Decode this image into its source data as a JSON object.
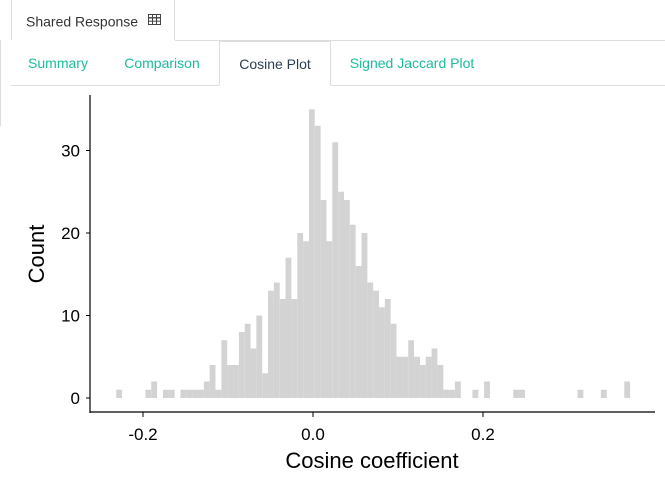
{
  "outer_tab": {
    "label": "Shared Response",
    "icon": "table-icon"
  },
  "tabs": [
    {
      "label": "Summary",
      "active": false
    },
    {
      "label": "Comparison",
      "active": false
    },
    {
      "label": "Cosine Plot",
      "active": true
    },
    {
      "label": "Signed Jaccard Plot",
      "active": false
    }
  ],
  "colors": {
    "accent": "#1abc9c",
    "active_text": "#2c3e50",
    "bar_fill": "#d3d3d3",
    "border": "#dddddd"
  },
  "chart_data": {
    "type": "bar",
    "title": "",
    "xlabel": "Cosine coefficient",
    "ylabel": "Count",
    "x_ticks": [
      -0.2,
      0.0,
      0.2
    ],
    "x_tick_labels": [
      "-0.2",
      "0.0",
      "0.2"
    ],
    "y_ticks": [
      0,
      10,
      20,
      30
    ],
    "y_tick_labels": [
      "0",
      "10",
      "20",
      "30"
    ],
    "xlim": [
      -0.265,
      0.4
    ],
    "ylim": [
      0,
      36
    ],
    "grid": false,
    "bin_width": 0.00687,
    "bins_start": [
      -0.2315,
      -0.2246,
      -0.2177,
      -0.2109,
      -0.204,
      -0.1971,
      -0.1903,
      -0.1834,
      -0.1765,
      -0.1697,
      -0.1628,
      -0.1559,
      -0.149,
      -0.1422,
      -0.1353,
      -0.1284,
      -0.1216,
      -0.1147,
      -0.1078,
      -0.101,
      -0.0941,
      -0.0872,
      -0.0803,
      -0.0735,
      -0.0666,
      -0.0597,
      -0.0529,
      -0.046,
      -0.0391,
      -0.0323,
      -0.0254,
      -0.0185,
      -0.0116,
      -0.0048,
      0.0021,
      0.009,
      0.0158,
      0.0227,
      0.0296,
      0.0364,
      0.0433,
      0.0502,
      0.0571,
      0.0639,
      0.0708,
      0.0777,
      0.0845,
      0.0914,
      0.0983,
      0.1051,
      0.112,
      0.1189,
      0.1258,
      0.1326,
      0.1395,
      0.1464,
      0.1532,
      0.1601,
      0.167,
      0.1738,
      0.1807,
      0.1876,
      0.1945,
      0.2013,
      0.2082,
      0.2151,
      0.2219,
      0.2288,
      0.2357,
      0.2425,
      0.2494,
      0.2563,
      0.2632,
      0.27,
      0.2769,
      0.2838,
      0.2906,
      0.2975,
      0.3044,
      0.3112,
      0.3181,
      0.325,
      0.3319,
      0.3387,
      0.3456,
      0.3525,
      0.3593,
      0.3662
    ],
    "values": [
      1,
      0,
      0,
      0,
      0,
      1,
      2,
      0,
      1,
      1,
      0,
      1,
      1,
      1,
      1,
      2,
      4,
      1,
      7,
      4,
      4,
      8,
      9,
      6,
      10,
      3,
      13,
      14,
      12,
      17,
      12,
      20,
      19,
      35,
      33,
      24,
      19,
      31,
      25,
      24,
      21,
      16,
      20,
      14,
      13,
      11,
      12,
      9,
      5,
      5,
      7,
      5,
      4,
      5,
      6,
      4,
      1,
      1,
      2,
      0,
      0,
      1,
      0,
      2,
      0,
      0,
      0,
      0,
      1,
      1,
      0,
      0,
      0,
      0,
      0,
      0,
      0,
      0,
      0,
      1,
      0,
      0,
      0,
      1,
      0,
      0,
      0,
      2
    ]
  }
}
